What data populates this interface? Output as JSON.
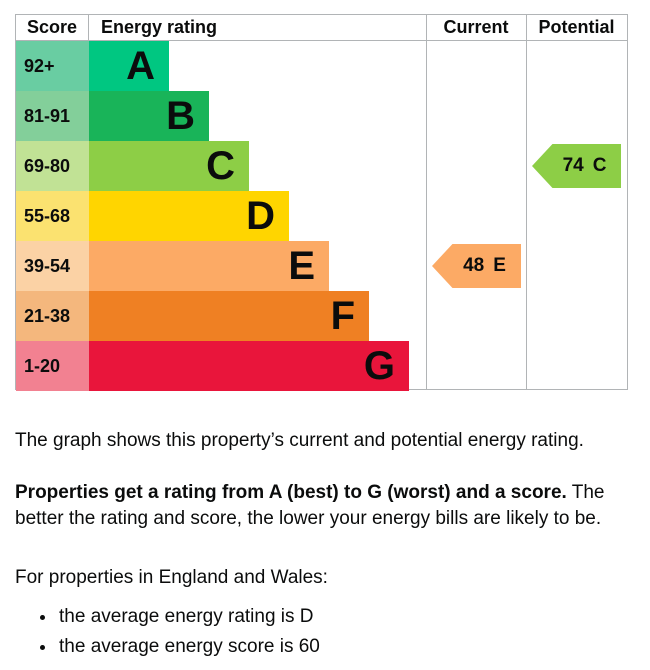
{
  "page": {
    "background": "#ffffff",
    "text_color": "#0b0c0c",
    "border_color": "#b1b4b6"
  },
  "header": {
    "score": "Score",
    "rating": "Energy rating",
    "current": "Current",
    "potential": "Potential"
  },
  "chart_data": {
    "type": "bar",
    "variant": "epc-energy-rating-graph",
    "columns": [
      "Score",
      "Energy rating",
      "Current",
      "Potential"
    ],
    "bands": [
      {
        "rating": "A",
        "score_range": "92+",
        "color": "#00c781",
        "score_color": "#69cda2"
      },
      {
        "rating": "B",
        "score_range": "81-91",
        "color": "#19b459",
        "score_color": "#83cf9a"
      },
      {
        "rating": "C",
        "score_range": "69-80",
        "color": "#8dce46",
        "score_color": "#c1e295"
      },
      {
        "rating": "D",
        "score_range": "55-68",
        "color": "#ffd500",
        "score_color": "#fbe270"
      },
      {
        "rating": "E",
        "score_range": "39-54",
        "color": "#fcaa65",
        "score_color": "#fbd2a5"
      },
      {
        "rating": "F",
        "score_range": "21-38",
        "color": "#ef8023",
        "score_color": "#f4b77d"
      },
      {
        "rating": "G",
        "score_range": "1-20",
        "color": "#e9153b",
        "score_color": "#f28191"
      }
    ],
    "current": {
      "score": "48",
      "rating": "E",
      "arrow_color": "#fcaa65"
    },
    "potential": {
      "score": "74",
      "rating": "C",
      "arrow_color": "#8dce46"
    }
  },
  "body": {
    "intro": "The graph shows this property’s current and potential energy rating.",
    "rating_bold": "Properties get a rating from A (best) to G (worst) and a score.",
    "rating_rest": " The better the rating and score, the lower your energy bills are likely to be.",
    "regions_heading": "For properties in England and Wales:",
    "bullets": [
      "the average energy rating is D",
      "the average energy score is 60"
    ]
  }
}
